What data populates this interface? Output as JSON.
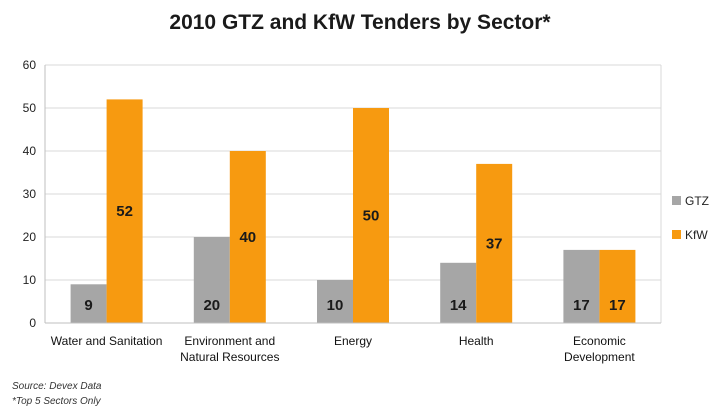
{
  "chart_data": {
    "type": "bar",
    "title": "2010 GTZ and KfW Tenders by Sector*",
    "categories": [
      [
        "Water and Sanitation"
      ],
      [
        "Environment and",
        "Natural Resources"
      ],
      [
        "Energy"
      ],
      [
        "Health"
      ],
      [
        "Economic",
        "Development"
      ]
    ],
    "series": [
      {
        "name": "GTZ",
        "values": [
          9,
          20,
          10,
          14,
          17
        ],
        "color": "#a6a6a6"
      },
      {
        "name": "KfW",
        "values": [
          52,
          40,
          50,
          37,
          17
        ],
        "color": "#f79a10"
      }
    ],
    "ylim": [
      0,
      60
    ],
    "yticks": [
      0,
      10,
      20,
      30,
      40,
      50,
      60
    ],
    "grid": true,
    "legend": "right",
    "notes": [
      "Source: Devex Data",
      "*Top 5 Sectors Only"
    ]
  }
}
